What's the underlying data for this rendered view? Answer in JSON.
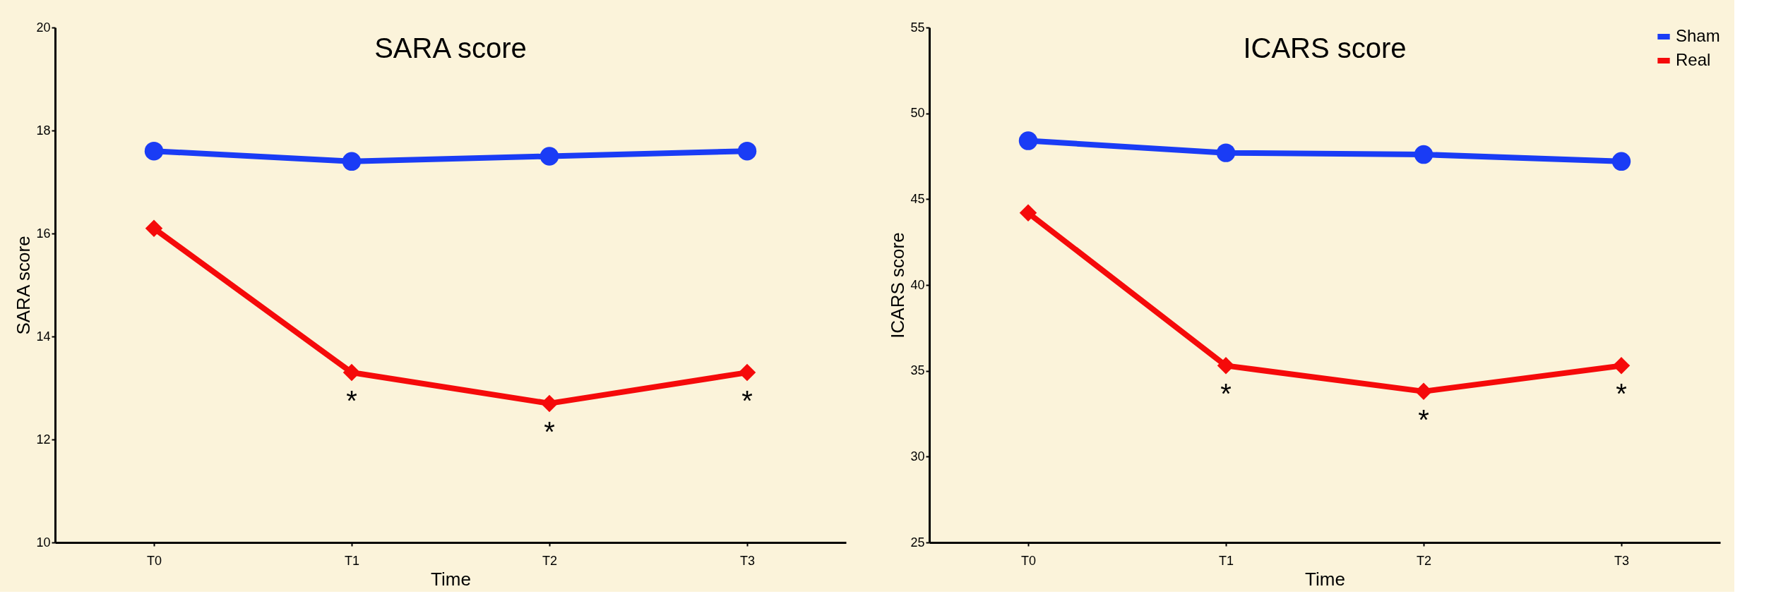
{
  "chart_data": [
    {
      "type": "line",
      "title": "SARA score",
      "xlabel": "Time",
      "ylabel": "SARA score",
      "categories": [
        "T0",
        "T1",
        "T2",
        "T3"
      ],
      "series": [
        {
          "color": "#1a3cf5",
          "marker": "circle",
          "values": [
            17.6,
            17.4,
            17.5,
            17.6
          ]
        },
        {
          "color": "#f50a0a",
          "marker": "diamond",
          "values": [
            16.1,
            13.3,
            12.7,
            13.3
          ]
        }
      ],
      "ylim": [
        10,
        20
      ],
      "yticks": [
        10,
        12,
        14,
        16,
        18,
        20
      ],
      "grid": false,
      "legend": false,
      "annotations": [
        "*",
        "*",
        "*"
      ]
    },
    {
      "type": "line",
      "title": "ICARS score",
      "xlabel": "Time",
      "ylabel": "ICARS score",
      "categories": [
        "T0",
        "T1",
        "T2",
        "T3"
      ],
      "series": [
        {
          "name": "Sham",
          "color": "#1a3cf5",
          "marker": "circle",
          "values": [
            48.4,
            47.7,
            47.6,
            47.2
          ]
        },
        {
          "name": "Real",
          "color": "#f50a0a",
          "marker": "diamond",
          "values": [
            44.2,
            35.3,
            33.8,
            35.3
          ]
        }
      ],
      "ylim": [
        25,
        55
      ],
      "yticks": [
        25,
        30,
        35,
        40,
        45,
        50,
        55
      ],
      "grid": false,
      "legend": "top right",
      "annotations": [
        "*",
        "*",
        "*"
      ]
    }
  ]
}
